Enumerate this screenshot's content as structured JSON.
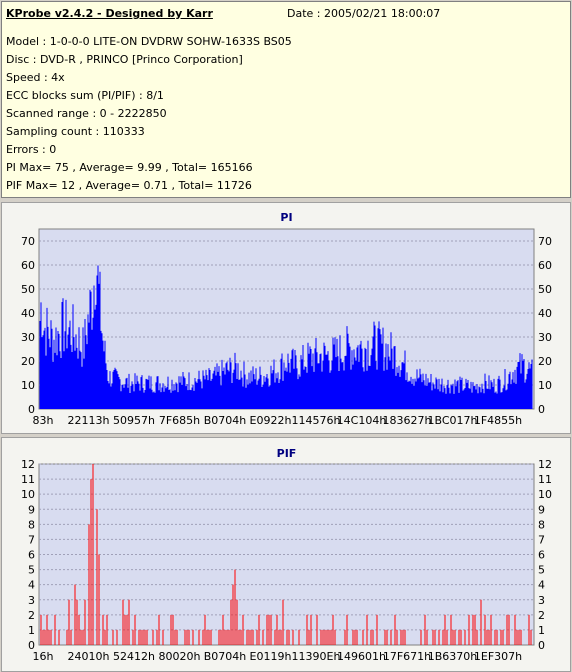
{
  "info": {
    "title": "KProbe v2.4.2 - Designed by Karr",
    "date": "Date : 2005/02/21 18:00:07",
    "lines": [
      "Model : 1-0-0-0 LITE-ON DVDRW SOHW-1633S BS05",
      "Disc : DVD-R , PRINCO [Princo Corporation]",
      "Speed : 4x",
      "ECC blocks sum (PI/PIF) : 8/1",
      "Scanned range : 0 - 2222850",
      "Sampling count : 110333",
      "Errors : 0",
      "PI Max= 75 , Average= 9.99 , Total= 165166",
      "PIF Max= 12 , Average= 0.71 , Total= 11726"
    ]
  },
  "colors": {
    "pi": "#0000ff",
    "pif": "#ff0000",
    "plot_bg": "#d8dcf0",
    "grid": "#a0a0b8"
  },
  "chart_data": [
    {
      "type": "area",
      "title": "PI",
      "ylim": [
        0,
        75
      ],
      "yticks": [
        0,
        10,
        20,
        30,
        40,
        50,
        60,
        70
      ],
      "xticks": [
        "83h",
        "22113h",
        "50957h",
        "7F685h",
        "B0704h",
        "E0922h",
        "114576h",
        "14C104h",
        "183627h",
        "1BC017h",
        "1F4855h"
      ],
      "grid": "horizontal dashed",
      "profile": [
        [
          0,
          35
        ],
        [
          0.5,
          50
        ],
        [
          1,
          38
        ],
        [
          3,
          32
        ],
        [
          5,
          38
        ],
        [
          7,
          35
        ],
        [
          9,
          28
        ],
        [
          10,
          42
        ],
        [
          11,
          55
        ],
        [
          11.5,
          75
        ],
        [
          12,
          55
        ],
        [
          13,
          30
        ],
        [
          14,
          15
        ],
        [
          18,
          12
        ],
        [
          25,
          12
        ],
        [
          30,
          13
        ],
        [
          35,
          14
        ],
        [
          38,
          18
        ],
        [
          40,
          19
        ],
        [
          42,
          15
        ],
        [
          45,
          15
        ],
        [
          48,
          18
        ],
        [
          50,
          22
        ],
        [
          52,
          20
        ],
        [
          55,
          24
        ],
        [
          60,
          25
        ],
        [
          62,
          28
        ],
        [
          65,
          28
        ],
        [
          68,
          30
        ],
        [
          70,
          28
        ],
        [
          72,
          25
        ],
        [
          74,
          20
        ],
        [
          76,
          15
        ],
        [
          80,
          12
        ],
        [
          85,
          11
        ],
        [
          88,
          10
        ],
        [
          90,
          12
        ],
        [
          92,
          11
        ],
        [
          94,
          13
        ],
        [
          96,
          18
        ],
        [
          98,
          20
        ],
        [
          100,
          16
        ]
      ]
    },
    {
      "type": "bar",
      "title": "PIF",
      "ylim": [
        0,
        12
      ],
      "yticks": [
        0,
        1,
        2,
        3,
        4,
        5,
        6,
        7,
        8,
        9,
        10,
        11,
        12
      ],
      "xticks": [
        "16h",
        "24010h",
        "52412h",
        "80020h",
        "B0704h",
        "E0119h",
        "11390Eh",
        "149601h",
        "17F671h",
        "1B6370h",
        "1EF307h"
      ],
      "grid": "horizontal dashed",
      "peaks": [
        [
          0.5,
          2
        ],
        [
          2,
          1
        ],
        [
          4,
          1
        ],
        [
          6,
          3
        ],
        [
          7,
          4
        ],
        [
          7.5,
          3
        ],
        [
          8,
          2
        ],
        [
          9,
          3
        ],
        [
          10,
          8
        ],
        [
          10.5,
          11
        ],
        [
          11,
          12
        ],
        [
          11.5,
          9
        ],
        [
          12,
          6
        ],
        [
          13,
          2
        ],
        [
          15,
          1
        ],
        [
          17,
          3
        ],
        [
          18,
          3
        ],
        [
          20,
          1
        ],
        [
          23,
          1
        ],
        [
          27,
          2
        ],
        [
          30,
          1
        ],
        [
          34,
          1
        ],
        [
          37,
          2
        ],
        [
          38.5,
          3
        ],
        [
          39,
          4
        ],
        [
          39.5,
          5
        ],
        [
          40,
          3
        ],
        [
          41,
          2
        ],
        [
          43,
          1
        ],
        [
          46,
          2
        ],
        [
          48,
          2
        ],
        [
          49,
          3
        ],
        [
          50,
          1
        ],
        [
          55,
          2
        ],
        [
          58,
          1
        ],
        [
          62,
          2
        ],
        [
          64,
          1
        ],
        [
          66,
          2
        ],
        [
          68,
          2
        ],
        [
          70,
          1
        ],
        [
          72,
          2
        ],
        [
          74,
          1
        ],
        [
          78,
          2
        ],
        [
          80,
          1
        ],
        [
          82,
          2
        ],
        [
          85,
          1
        ],
        [
          88,
          2
        ],
        [
          89,
          3
        ],
        [
          90,
          2
        ],
        [
          92,
          1
        ],
        [
          95,
          2
        ],
        [
          97,
          1
        ],
        [
          99,
          2
        ]
      ]
    }
  ]
}
